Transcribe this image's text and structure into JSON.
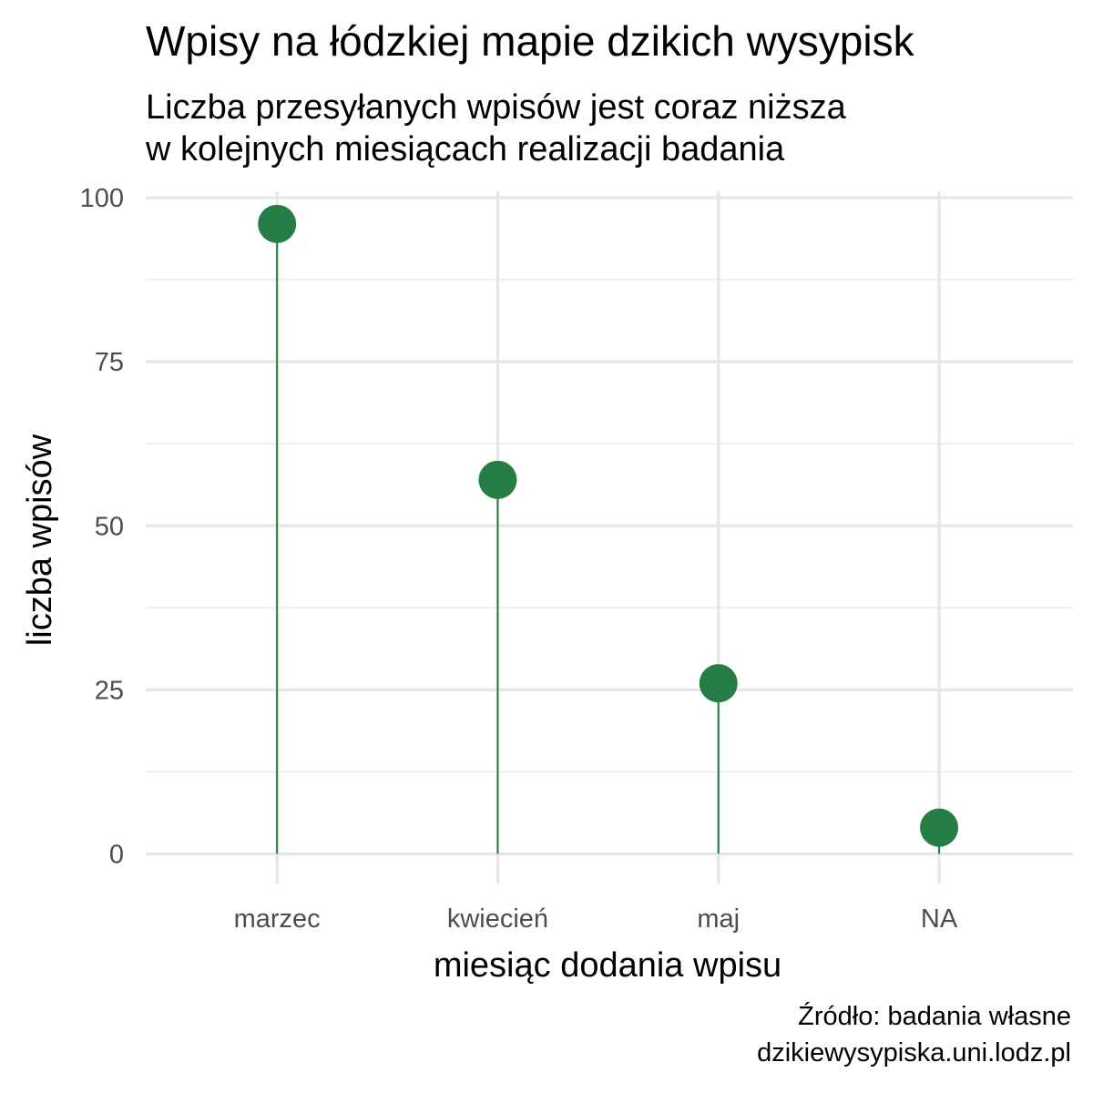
{
  "chart_data": {
    "type": "lollipop",
    "title": "Wpisy na łódzkiej mapie dzikich wysypisk",
    "subtitle": [
      "Liczba przesyłanych wpisów jest coraz niższa",
      "w kolejnych miesiącach realizacji badania"
    ],
    "xlabel": "miesiąc dodania wpisu",
    "ylabel": "liczba wpisów",
    "categories": [
      "marzec",
      "kwiecień",
      "maj",
      "NA"
    ],
    "values": [
      96,
      57,
      26,
      4
    ],
    "ylim": [
      -4,
      100
    ],
    "yticks": [
      0,
      25,
      50,
      75,
      100
    ],
    "grid": true,
    "color": "#267d46",
    "caption": [
      "Źródło: badania własne",
      "dzikiewysypiska.uni.lodz.pl"
    ]
  }
}
